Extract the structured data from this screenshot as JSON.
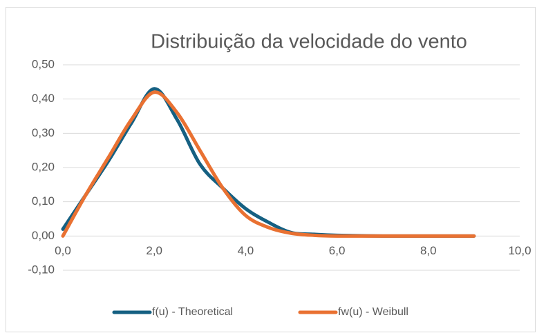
{
  "chart_data": {
    "type": "line",
    "title": "Distribuição da velocidade do vento",
    "x": [
      0,
      0.5,
      1,
      1.5,
      2,
      2.5,
      3,
      3.5,
      4,
      4.5,
      5,
      5.5,
      6,
      7,
      8,
      9
    ],
    "series": [
      {
        "name": "f(u) - Theoretical",
        "color": "#156082",
        "values": [
          0.02,
          0.12,
          0.22,
          0.33,
          0.43,
          0.34,
          0.21,
          0.14,
          0.08,
          0.04,
          0.01,
          0.005,
          0.002,
          0,
          0,
          0
        ]
      },
      {
        "name": "fw(u) - Weibull",
        "color": "#e97132",
        "values": [
          0,
          0.12,
          0.23,
          0.34,
          0.42,
          0.36,
          0.25,
          0.14,
          0.06,
          0.025,
          0.008,
          0.002,
          0,
          0,
          0,
          0
        ]
      }
    ],
    "xlim": [
      0,
      10
    ],
    "xticks": [
      {
        "value": 0,
        "label": "0,0"
      },
      {
        "value": 2,
        "label": "2,0"
      },
      {
        "value": 4,
        "label": "4,0"
      },
      {
        "value": 6,
        "label": "6,0"
      },
      {
        "value": 8,
        "label": "8,0"
      },
      {
        "value": 10,
        "label": "10,0"
      }
    ],
    "ylim": [
      -0.1,
      0.5
    ],
    "yticks": [
      {
        "value": -0.1,
        "label": "-0,10"
      },
      {
        "value": 0,
        "label": "0,00"
      },
      {
        "value": 0.1,
        "label": "0,10"
      },
      {
        "value": 0.2,
        "label": "0,20"
      },
      {
        "value": 0.3,
        "label": "0,30"
      },
      {
        "value": 0.4,
        "label": "0,40"
      },
      {
        "value": 0.5,
        "label": "0,50"
      }
    ],
    "grid": true,
    "legend": "bottom"
  }
}
